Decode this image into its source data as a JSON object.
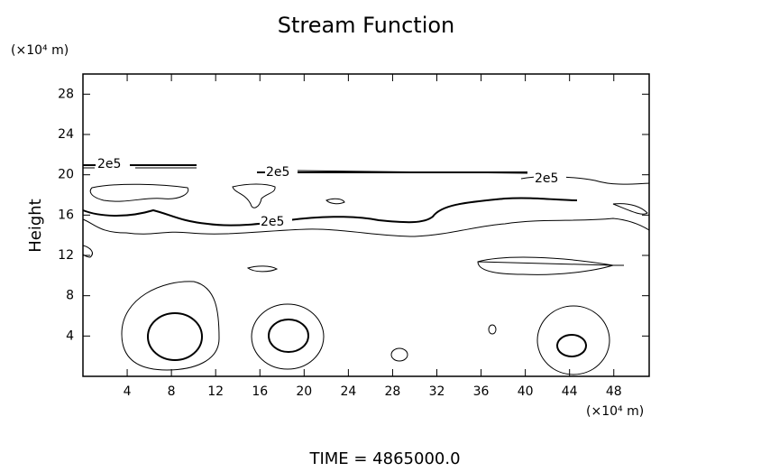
{
  "chart_data": {
    "type": "contour",
    "title": "Stream Function",
    "y_unit": "(×10⁴ m)",
    "x_unit": "(×10⁴ m)",
    "y_label": "Height",
    "footer": "TIME = 4865000.0",
    "contour_labels": [
      "2e5",
      "2e5",
      "2e5",
      "2e5"
    ],
    "xlim": [
      0,
      51.2
    ],
    "ylim": [
      0,
      30
    ],
    "xticks": [
      4,
      8,
      12,
      16,
      20,
      24,
      28,
      32,
      36,
      40,
      44,
      48
    ],
    "yticks": [
      4,
      8,
      12,
      16,
      20,
      24,
      28
    ]
  }
}
